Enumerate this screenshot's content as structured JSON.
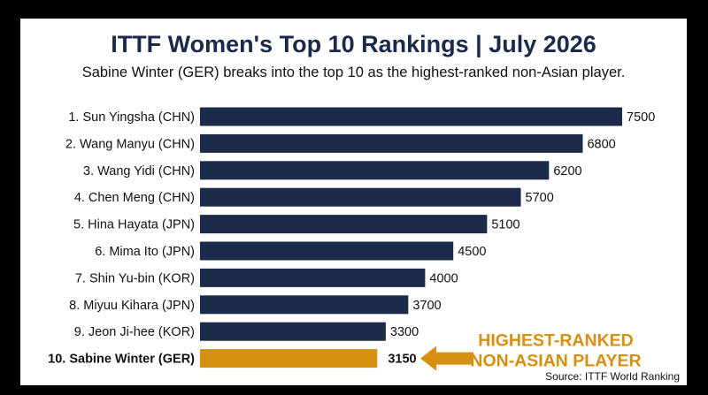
{
  "chart_data": {
    "type": "bar",
    "orientation": "horizontal",
    "title": "ITTF Women's Top 10 Rankings | July 2026",
    "subtitle": "Sabine Winter (GER) breaks into the top 10 as the highest-ranked non-Asian player.",
    "categories": [
      "1. Sun Yingsha (CHN)",
      "2. Wang Manyu (CHN)",
      "3. Wang Yidi (CHN)",
      "4. Chen Meng (CHN)",
      "5. Hina Hayata (JPN)",
      "6. Mima Ito (JPN)",
      "7. Shin Yu-bin (KOR)",
      "8. Miyuu Kihara (JPN)",
      "9. Jeon Ji-hee (KOR)",
      "10. Sabine Winter (GER)"
    ],
    "values": [
      7500,
      6800,
      6200,
      5700,
      5100,
      4500,
      4000,
      3700,
      3300,
      3150
    ],
    "highlight_index": 9,
    "colors": {
      "bar": "#1b2a4a",
      "highlight": "#d4900e",
      "title": "#1b2a4a"
    },
    "xlim": [
      0,
      7500
    ],
    "grid": false,
    "annotation": {
      "line1": "HIGHEST-RANKED",
      "line2": "NON-ASIAN PLAYER",
      "arrow": "left-arrow"
    },
    "source": "Source: ITTF World Ranking"
  }
}
